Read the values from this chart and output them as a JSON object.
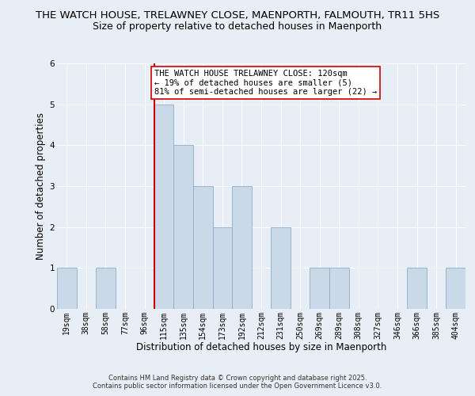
{
  "title_line1": "THE WATCH HOUSE, TRELAWNEY CLOSE, MAENPORTH, FALMOUTH, TR11 5HS",
  "title_line2": "Size of property relative to detached houses in Maenporth",
  "xlabel": "Distribution of detached houses by size in Maenporth",
  "ylabel": "Number of detached properties",
  "bin_labels": [
    "19sqm",
    "38sqm",
    "58sqm",
    "77sqm",
    "96sqm",
    "115sqm",
    "135sqm",
    "154sqm",
    "173sqm",
    "192sqm",
    "212sqm",
    "231sqm",
    "250sqm",
    "269sqm",
    "289sqm",
    "308sqm",
    "327sqm",
    "346sqm",
    "366sqm",
    "385sqm",
    "404sqm"
  ],
  "bin_values": [
    1,
    0,
    1,
    0,
    0,
    5,
    4,
    3,
    2,
    3,
    0,
    2,
    0,
    1,
    1,
    0,
    0,
    0,
    1,
    0,
    1
  ],
  "bar_color": "#c9d9e8",
  "bar_edge_color": "#8badc8",
  "highlight_bin_index": 5,
  "highlight_line_color": "#cc0000",
  "annotation_text": "THE WATCH HOUSE TRELAWNEY CLOSE: 120sqm\n← 19% of detached houses are smaller (5)\n81% of semi-detached houses are larger (22) →",
  "annotation_box_color": "#ffffff",
  "annotation_box_edge_color": "#cc0000",
  "ylim": [
    0,
    6
  ],
  "yticks": [
    0,
    1,
    2,
    3,
    4,
    5,
    6
  ],
  "footer_line1": "Contains HM Land Registry data © Crown copyright and database right 2025.",
  "footer_line2": "Contains public sector information licensed under the Open Government Licence v3.0.",
  "background_color": "#e8eef5",
  "plot_bg_color": "#e8eef5",
  "title1_fontsize": 9.5,
  "title2_fontsize": 9,
  "axis_label_fontsize": 8.5,
  "tick_fontsize": 7,
  "annotation_fontsize": 7.5,
  "footer_fontsize": 6
}
